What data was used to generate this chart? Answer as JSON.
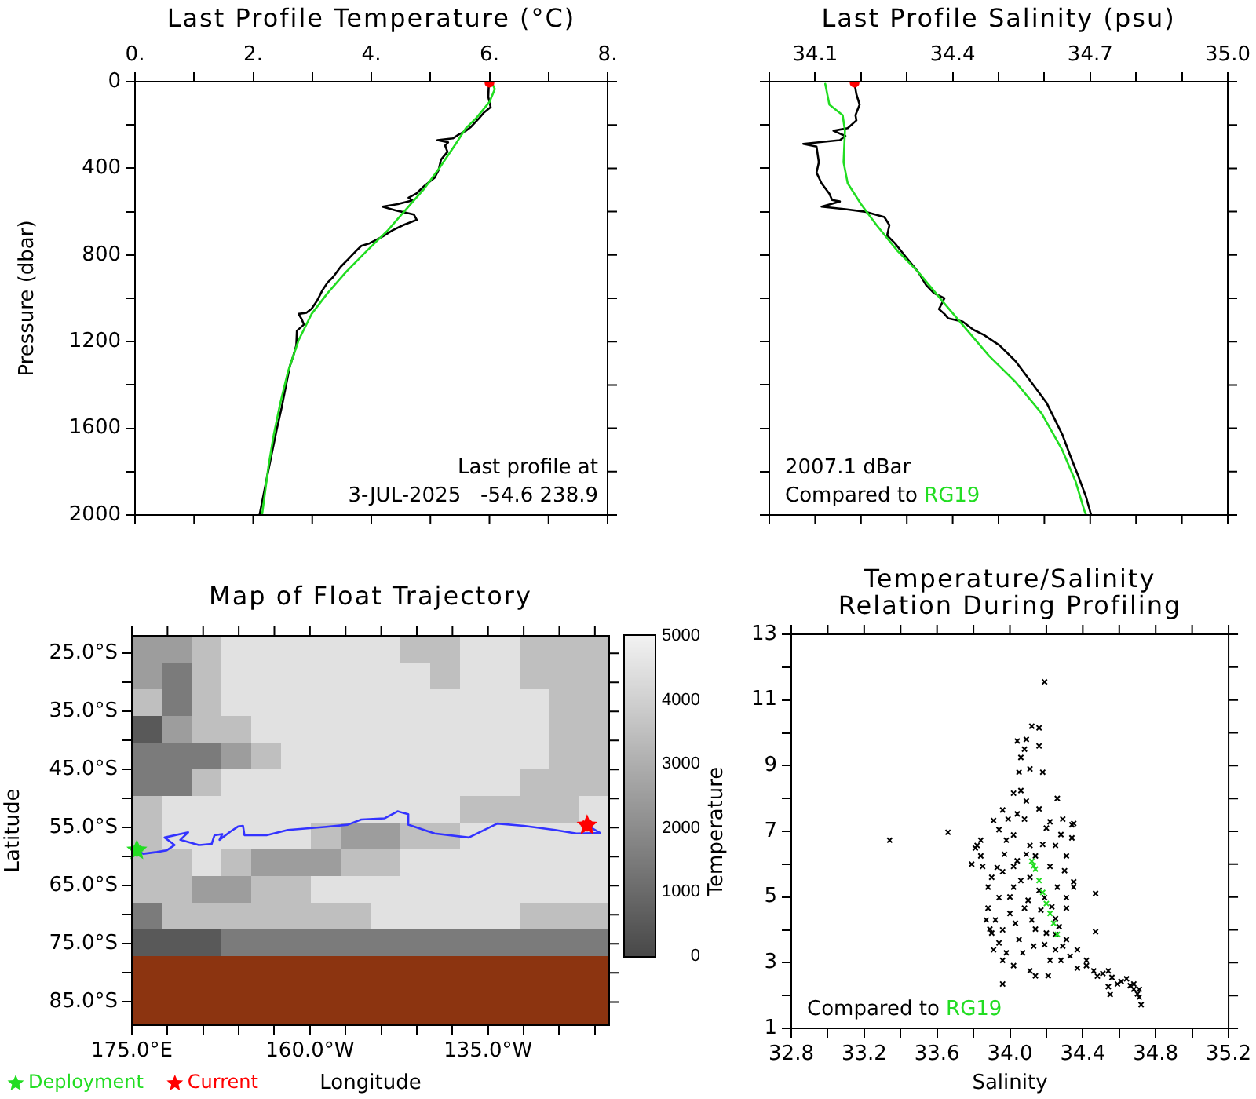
{
  "chart_data": [
    {
      "type": "line",
      "title": "Last Profile Temperature (°C)",
      "ylabel": "Pressure (dbar)",
      "xlim": [
        0,
        8
      ],
      "xticks": [
        {
          "value": 0,
          "label": "0."
        },
        {
          "value": 1,
          "label": null
        },
        {
          "value": 2,
          "label": "2."
        },
        {
          "value": 3,
          "label": null
        },
        {
          "value": 4,
          "label": "4."
        },
        {
          "value": 5,
          "label": null
        },
        {
          "value": 6,
          "label": "6."
        },
        {
          "value": 7,
          "label": null
        },
        {
          "value": 8,
          "label": "8."
        }
      ],
      "ylim": [
        2000,
        0
      ],
      "yticks": [
        0,
        {
          "value": 200,
          "label": null
        },
        400,
        {
          "value": 600,
          "label": null
        },
        800,
        {
          "value": 1000,
          "label": null
        },
        1200,
        {
          "value": 1400,
          "label": null
        },
        1600,
        {
          "value": 1800,
          "label": null
        },
        2000
      ],
      "annotations": [
        "Last profile at",
        "3-JUL-2025   -54.6 238.9"
      ],
      "series": [
        {
          "color": "#000000",
          "x": [
            5.99,
            5.98,
            6.02,
            5.91,
            5.83,
            5.69,
            5.6,
            5.47,
            5.38,
            5.12,
            5.3,
            5.25,
            5.29,
            5.18,
            5.14,
            5.07,
            4.9,
            4.76,
            4.63,
            4.7,
            4.45,
            4.19,
            4.41,
            4.72,
            4.77,
            4.54,
            4.36,
            4.19,
            3.97,
            3.83,
            3.74,
            3.61,
            3.48,
            3.35,
            3.26,
            3.17,
            3.08,
            2.99,
            2.9,
            2.77,
            2.82,
            2.86,
            2.74,
            2.73,
            2.68,
            2.62,
            2.55,
            2.48,
            2.4,
            2.31,
            2.22,
            2.15,
            2.11
          ],
          "values": [
            10,
            70,
            118,
            142,
            167,
            208,
            227,
            246,
            262,
            270,
            280,
            295,
            324,
            360,
            408,
            444,
            481,
            517,
            536,
            548,
            565,
            577,
            594,
            613,
            638,
            662,
            686,
            715,
            746,
            758,
            782,
            819,
            855,
            903,
            927,
            964,
            1012,
            1048,
            1067,
            1072,
            1096,
            1121,
            1150,
            1217,
            1265,
            1314,
            1410,
            1507,
            1604,
            1724,
            1845,
            1942,
            1997
          ]
        },
        {
          "color": "#22dd22",
          "x": [
            6.05,
            6.09,
            6.0,
            5.78,
            5.6,
            5.43,
            5.16,
            4.9,
            4.59,
            4.28,
            3.92,
            3.57,
            3.26,
            2.99,
            2.77,
            2.59,
            2.46,
            2.35,
            2.26,
            2.19,
            2.15
          ],
          "values": [
            10,
            34,
            94,
            167,
            215,
            287,
            396,
            493,
            589,
            686,
            782,
            879,
            976,
            1072,
            1193,
            1338,
            1483,
            1628,
            1773,
            1918,
            2000
          ]
        },
        {
          "type": "scatter",
          "marker": "circle",
          "color": "#ff0000",
          "x": [
            6.0
          ],
          "values": [
            5
          ]
        }
      ]
    },
    {
      "type": "line",
      "title": "Last Profile Salinity (psu)",
      "xlim": [
        34.0,
        35.0
      ],
      "xticks": [
        {
          "value": 34.0,
          "label": null
        },
        34.1,
        {
          "value": 34.2,
          "label": null
        },
        {
          "value": 34.3,
          "label": null
        },
        34.4,
        {
          "value": 34.5,
          "label": null
        },
        {
          "value": 34.6,
          "label": null
        },
        34.7,
        {
          "value": 34.8,
          "label": null
        },
        {
          "value": 34.9,
          "label": null
        },
        {
          "value": 35.0,
          "label": "35.0"
        }
      ],
      "ylim": [
        2000,
        0
      ],
      "yticks": [
        0,
        200,
        400,
        600,
        800,
        1000,
        1200,
        1400,
        1600,
        1800,
        2000
      ],
      "tick_labels": "x",
      "annotations": [
        "2007.1 dBar"
      ],
      "legend": "bottom left",
      "legend_title": "Compared to",
      "series": [
        {
          "color": "#000000",
          "x": [
            34.186,
            34.19,
            34.197,
            34.188,
            34.19,
            34.171,
            34.14,
            34.166,
            34.154,
            34.074,
            34.103,
            34.108,
            34.103,
            34.114,
            34.131,
            34.137,
            34.154,
            34.114,
            34.166,
            34.211,
            34.251,
            34.262,
            34.257,
            34.274,
            34.297,
            34.325,
            34.342,
            34.359,
            34.382,
            34.37,
            34.382,
            34.39,
            34.422,
            34.445,
            34.468,
            34.502,
            34.537,
            34.571,
            34.605,
            34.639,
            34.656,
            34.674,
            34.691,
            34.702
          ],
          "values": [
            10,
            58,
            106,
            155,
            179,
            215,
            227,
            251,
            270,
            287,
            300,
            372,
            420,
            469,
            517,
            546,
            553,
            577,
            589,
            601,
            625,
            662,
            710,
            746,
            807,
            879,
            939,
            976,
            1000,
            1050,
            1072,
            1092,
            1108,
            1145,
            1169,
            1217,
            1290,
            1386,
            1483,
            1628,
            1724,
            1821,
            1917,
            2000
          ]
        },
        {
          "name": "RG19",
          "color": "#22dd22",
          "x": [
            34.122,
            34.131,
            34.16,
            34.165,
            34.162,
            34.171,
            34.2,
            34.234,
            34.28,
            34.325,
            34.382,
            34.479,
            34.537,
            34.594,
            34.639,
            34.668,
            34.687,
            34.691
          ],
          "values": [
            10,
            106,
            155,
            227,
            372,
            469,
            565,
            662,
            782,
            879,
            1024,
            1265,
            1386,
            1531,
            1700,
            1845,
            1978,
            2000
          ]
        },
        {
          "type": "scatter",
          "marker": "circle",
          "color": "#ff0000",
          "x": [
            34.186
          ],
          "values": [
            5
          ]
        }
      ]
    },
    {
      "type": "heatmap",
      "categories": [
        null,
        null,
        null,
        null,
        null,
        null,
        null,
        null,
        null,
        null,
        null,
        null,
        null,
        null,
        null,
        null
      ],
      "y_categories": [
        null,
        null,
        null,
        null,
        null,
        null,
        null,
        null,
        null,
        null,
        null,
        null
      ],
      "clim": [
        0,
        5000
      ],
      "cticks": [
        0,
        1000,
        2000,
        3000,
        4000,
        5000
      ],
      "cells": [
        [
          2500,
          2500,
          3500,
          4500,
          4500,
          4500,
          4500,
          4500,
          4500,
          3500,
          3500,
          4500,
          4500,
          3500,
          3500,
          3500
        ],
        [
          2500,
          1500,
          3500,
          4500,
          4500,
          4500,
          4500,
          4500,
          4500,
          4500,
          3500,
          4500,
          4500,
          3500,
          3500,
          3500
        ],
        [
          3500,
          1500,
          3500,
          4500,
          4500,
          4500,
          4500,
          4500,
          4500,
          4500,
          4500,
          4500,
          4500,
          4500,
          3500,
          3500
        ],
        [
          500,
          2500,
          3500,
          3500,
          4500,
          4500,
          4500,
          4500,
          4500,
          4500,
          4500,
          4500,
          4500,
          4500,
          3500,
          3500
        ],
        [
          1500,
          1500,
          1500,
          2500,
          3500,
          4500,
          4500,
          4500,
          4500,
          4500,
          4500,
          4500,
          4500,
          4500,
          3500,
          3500
        ],
        [
          1500,
          1500,
          3500,
          4500,
          4500,
          4500,
          4500,
          4500,
          4500,
          4500,
          4500,
          4500,
          4500,
          3500,
          3500,
          3500
        ],
        [
          3500,
          4500,
          4500,
          4500,
          4500,
          4500,
          4500,
          4500,
          4500,
          4500,
          4500,
          3500,
          3500,
          3500,
          3500,
          4500
        ],
        [
          3500,
          4500,
          4500,
          4500,
          4500,
          4500,
          3500,
          2500,
          2500,
          3500,
          3500,
          4500,
          4500,
          4500,
          4500,
          4500
        ],
        [
          3500,
          3500,
          4500,
          3500,
          2500,
          2500,
          2500,
          3500,
          3500,
          4500,
          4500,
          4500,
          4500,
          4500,
          4500,
          4500
        ],
        [
          3500,
          3500,
          2500,
          2500,
          3500,
          3500,
          4500,
          4500,
          4500,
          4500,
          4500,
          4500,
          4500,
          4500,
          4500,
          4500
        ],
        [
          1500,
          3500,
          3500,
          3500,
          3500,
          3500,
          3500,
          3500,
          4500,
          4500,
          4500,
          4500,
          4500,
          3500,
          3500,
          3500
        ],
        [
          500,
          500,
          500,
          1500,
          1500,
          1500,
          1500,
          1500,
          1500,
          1500,
          1500,
          1500,
          1500,
          1500,
          1500,
          1500
        ]
      ]
    },
    {
      "type": "line",
      "title": "Map of Float Trajectory",
      "xlabel": "Longitude",
      "ylabel": "Latitude",
      "xlim": [
        175,
        242
      ],
      "xticks": [
        {
          "value": 175,
          "label": "175.0°E"
        },
        {
          "value": 180,
          "label": null
        },
        {
          "value": 185,
          "label": null
        },
        {
          "value": 190,
          "label": null
        },
        {
          "value": 195,
          "label": null
        },
        {
          "value": 200,
          "label": "160.0°W"
        },
        {
          "value": 205,
          "label": null
        },
        {
          "value": 210,
          "label": null
        },
        {
          "value": 215,
          "label": null
        },
        {
          "value": 220,
          "label": null
        },
        {
          "value": 225,
          "label": "135.0°W"
        },
        {
          "value": 230,
          "label": null
        },
        {
          "value": 235,
          "label": null
        },
        {
          "value": 240,
          "label": null
        }
      ],
      "ylim": [
        -89,
        -22
      ],
      "yticks": [
        {
          "value": -85,
          "label": "85.0°S"
        },
        {
          "value": -80,
          "label": null
        },
        {
          "value": -75,
          "label": "75.0°S"
        },
        {
          "value": -70,
          "label": null
        },
        {
          "value": -65,
          "label": "65.0°S"
        },
        {
          "value": -60,
          "label": null
        },
        {
          "value": -55,
          "label": "55.0°S"
        },
        {
          "value": -50,
          "label": null
        },
        {
          "value": -45,
          "label": "45.0°S"
        },
        {
          "value": -40,
          "label": null
        },
        {
          "value": -35,
          "label": "35.0°S"
        },
        {
          "value": -30,
          "label": null
        },
        {
          "value": -25,
          "label": "25.0°S"
        }
      ],
      "bands": [
        {
          "axis": "y",
          "from": -89,
          "to": -77,
          "color": "#8c3410"
        }
      ],
      "legend": "bottom left",
      "series": [
        {
          "color": "#3333ff",
          "x": [
            175.7,
            176.6,
            178.5,
            179.9,
            181.0,
            179.6,
            182.9,
            181.8,
            184.4,
            186.2,
            186.6,
            187.7,
            187.3,
            188.8,
            189.9,
            190.6,
            190.8,
            193.9,
            196.9,
            202.0,
            205.3,
            207.2,
            210.5,
            212.3,
            213.8,
            213.8,
            217.5,
            222.3,
            226.3,
            230.0,
            234.4,
            237.4,
            240.7,
            238.9
          ],
          "values": [
            -58.9,
            -59.5,
            -59.2,
            -58.9,
            -58.0,
            -56.7,
            -55.8,
            -57.1,
            -58.0,
            -57.8,
            -56.3,
            -56.1,
            -57.1,
            -55.7,
            -54.8,
            -54.7,
            -56.3,
            -56.3,
            -55.4,
            -54.9,
            -54.5,
            -53.6,
            -53.4,
            -52.2,
            -52.7,
            -54.5,
            -56.0,
            -56.7,
            -54.3,
            -54.7,
            -55.4,
            -56.0,
            -55.9,
            -54.6
          ]
        },
        {
          "type": "scatter",
          "name": "Deployment",
          "marker": "star",
          "color": "#22dd22",
          "x": [
            175.7
          ],
          "values": [
            -58.9
          ]
        },
        {
          "type": "scatter",
          "name": "Current",
          "marker": "star",
          "color": "#ff0000",
          "x": [
            238.9
          ],
          "values": [
            -54.6
          ]
        }
      ]
    },
    {
      "type": "scatter",
      "title": "Temperature/Salinity\nRelation During Profiling",
      "xlabel": "Salinity",
      "ylabel": "Temperature",
      "xlim": [
        32.8,
        35.2
      ],
      "xticks": [
        32.8,
        {
          "value": 33.0,
          "label": null
        },
        33.2,
        {
          "value": 33.4,
          "label": null
        },
        33.6,
        {
          "value": 33.8,
          "label": null
        },
        {
          "value": 34.0,
          "label": "34.0"
        },
        {
          "value": 34.2,
          "label": null
        },
        34.4,
        {
          "value": 34.6,
          "label": null
        },
        34.8,
        {
          "value": 35.0,
          "label": null
        },
        35.2
      ],
      "ylim": [
        1,
        13
      ],
      "yticks": [
        1,
        {
          "value": 2,
          "label": null
        },
        3,
        {
          "value": 4,
          "label": null
        },
        5,
        {
          "value": 6,
          "label": null
        },
        7,
        {
          "value": 8,
          "label": null
        },
        9,
        {
          "value": 10,
          "label": null
        },
        11,
        {
          "value": 12,
          "label": null
        },
        13
      ],
      "marker": "cross",
      "legend": "bottom left",
      "legend_title": "Compared to",
      "series": [
        {
          "color": "#000000",
          "x": [
            33.34,
            33.66,
            34.19,
            34.12,
            34.16,
            34.04,
            34.09,
            34.08,
            34.06,
            34.16,
            34.05,
            34.11,
            34.18,
            34.02,
            34.06,
            34.09,
            34.26,
            33.96,
            34.16,
            33.91,
            33.94,
            33.82,
            33.84,
            33.79,
            34.34,
            34.35,
            34.47,
            34.47,
            33.96,
            34.14,
            34.21,
            34.54,
            34.55,
            34.28,
            34.37,
            34.48,
            34.59,
            34.68,
            34.71,
            34.72,
            34.22,
            34.29,
            34.35,
            34.31,
            34.25,
            34.08,
            34.02,
            34.11,
            33.84,
            33.81,
            33.99,
            34.04,
            33.98,
            33.85,
            33.88,
            33.88,
            33.89,
            33.91,
            33.96,
            34.02,
            34.11,
            34.22,
            33.96,
            34.02,
            34.08,
            34.14,
            34.19,
            34.0,
            34.05,
            33.96,
            34.11,
            34.19,
            34.25,
            34.31,
            34.37,
            34.26,
            34.31,
            34.14,
            34.22,
            33.94,
            34.02,
            34.25,
            34.42,
            34.54,
            34.64,
            34.68,
            34.71,
            34.42,
            34.51,
            34.61,
            34.31,
            34.25,
            34.35,
            33.9,
            33.92,
            33.94,
            33.98,
            34.0,
            34.03,
            34.06,
            34.07,
            34.1,
            34.12,
            34.13,
            34.16,
            34.17,
            34.2,
            34.23,
            34.27,
            34.29,
            34.33,
            33.87,
            33.9,
            33.93,
            34.04,
            34.09,
            33.97,
            34.18,
            34.2,
            34.28,
            34.3,
            34.34,
            34.46,
            34.56,
            34.66,
            34.7
          ],
          "values": [
            6.73,
            6.97,
            11.55,
            10.2,
            10.15,
            9.75,
            9.8,
            9.5,
            9.25,
            9.6,
            8.8,
            8.9,
            8.8,
            8.16,
            8.24,
            7.92,
            8.0,
            7.65,
            7.68,
            7.33,
            7.05,
            6.57,
            6.25,
            6.0,
            7.2,
            5.3,
            5.11,
            3.94,
            2.35,
            2.6,
            2.6,
            2.27,
            2.03,
            3.07,
            2.83,
            2.59,
            2.35,
            2.19,
            1.95,
            1.72,
            7.29,
            7.37,
            7.24,
            6.25,
            6.57,
            7.37,
            6.89,
            6.57,
            6.73,
            6.49,
            7.37,
            7.53,
            6.73,
            5.93,
            5.3,
            4.66,
            4.02,
            3.39,
            3.07,
            2.91,
            2.75,
            3.07,
            5.77,
            5.3,
            4.66,
            4.02,
            3.55,
            4.5,
            3.7,
            4.0,
            5.6,
            4.98,
            4.34,
            3.7,
            3.39,
            5.3,
            4.66,
            6.25,
            5.93,
            4.98,
            5.93,
            3.39,
            3.07,
            2.75,
            2.51,
            2.35,
            2.19,
            2.91,
            2.67,
            2.43,
            4.98,
            3.86,
            5.46,
            5.6,
            4.3,
            3.6,
            3.3,
            5.0,
            4.2,
            5.5,
            3.3,
            4.9,
            4.3,
            3.5,
            5.2,
            4.6,
            3.9,
            4.7,
            4.1,
            3.5,
            3.2,
            4.3,
            3.9,
            5.9,
            6.1,
            6.3,
            6.3,
            6.6,
            7.1,
            6.9,
            5.8,
            6.8,
            2.75,
            2.55,
            2.3,
            2.05
          ]
        },
        {
          "name": "RG19",
          "color": "#22dd22",
          "x": [
            34.12,
            34.13,
            34.14,
            34.16,
            34.18,
            34.2,
            34.22,
            34.24,
            34.26
          ],
          "values": [
            6.09,
            5.95,
            5.85,
            5.5,
            5.14,
            4.8,
            4.5,
            4.2,
            3.86
          ]
        }
      ]
    }
  ]
}
